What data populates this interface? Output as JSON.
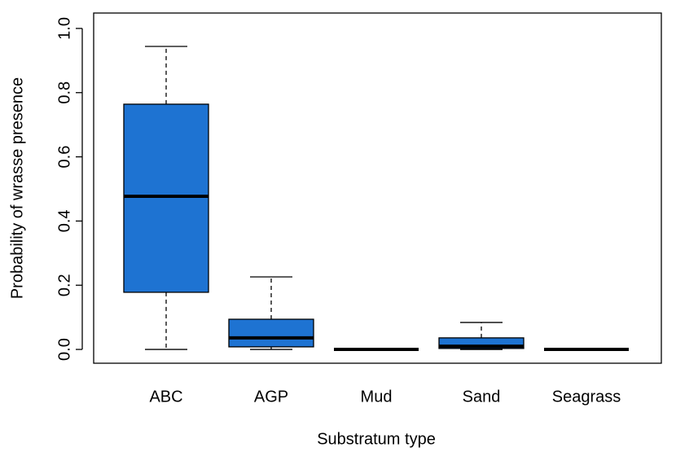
{
  "chart_data": {
    "type": "box",
    "x_label": "Substratum type",
    "y_label": "Probability of wrasse presence",
    "categories": [
      "ABC",
      "AGP",
      "Mud",
      "Sand",
      "Seagrass"
    ],
    "color": "#1e73d2",
    "boxes": [
      {
        "min": 0.0,
        "q1": 0.178,
        "median": 0.477,
        "q3": 0.764,
        "max": 0.944
      },
      {
        "min": 0.0,
        "q1": 0.008,
        "median": 0.036,
        "q3": 0.094,
        "max": 0.226
      },
      {
        "min": 0.0,
        "q1": 0.0,
        "median": 0.0,
        "q3": 0.0,
        "max": 0.0
      },
      {
        "min": 0.0,
        "q1": 0.003,
        "median": 0.01,
        "q3": 0.036,
        "max": 0.084
      },
      {
        "min": 0.0,
        "q1": 0.0,
        "median": 0.0,
        "q3": 0.0,
        "max": 0.0
      }
    ],
    "ylim": [
      -0.043,
      1.048
    ],
    "yticks": [
      {
        "value": 0,
        "label": "0.0"
      },
      0.2,
      0.4,
      0.6,
      0.8,
      {
        "value": 1,
        "label": "1.0"
      }
    ]
  }
}
